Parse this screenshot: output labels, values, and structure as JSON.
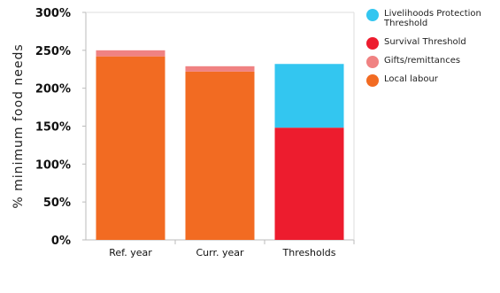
{
  "chart_data": {
    "type": "bar",
    "stacked": true,
    "categories": [
      "Ref. year",
      "Curr. year",
      "Thresholds"
    ],
    "ylabel": "% minimum food needs",
    "ylim": [
      0,
      300
    ],
    "yticks": [
      "0%",
      "50%",
      "100%",
      "150%",
      "200%",
      "250%",
      "300%"
    ],
    "series": [
      {
        "name": "Local labour",
        "color": "#f26b22",
        "values": [
          242,
          222,
          0
        ]
      },
      {
        "name": "Gifts/remittances",
        "color": "#f08282",
        "values": [
          8,
          7,
          0
        ]
      },
      {
        "name": "Survival Threshold",
        "color": "#ed1c2e",
        "values": [
          0,
          0,
          148
        ]
      },
      {
        "name": "Livelihoods Protection Threshold",
        "color": "#33c6f0",
        "values": [
          0,
          0,
          84
        ]
      }
    ],
    "legend_order": [
      "Livelihoods Protection Threshold",
      "Survival Threshold",
      "Gifts/remittances",
      "Local labour"
    ]
  }
}
